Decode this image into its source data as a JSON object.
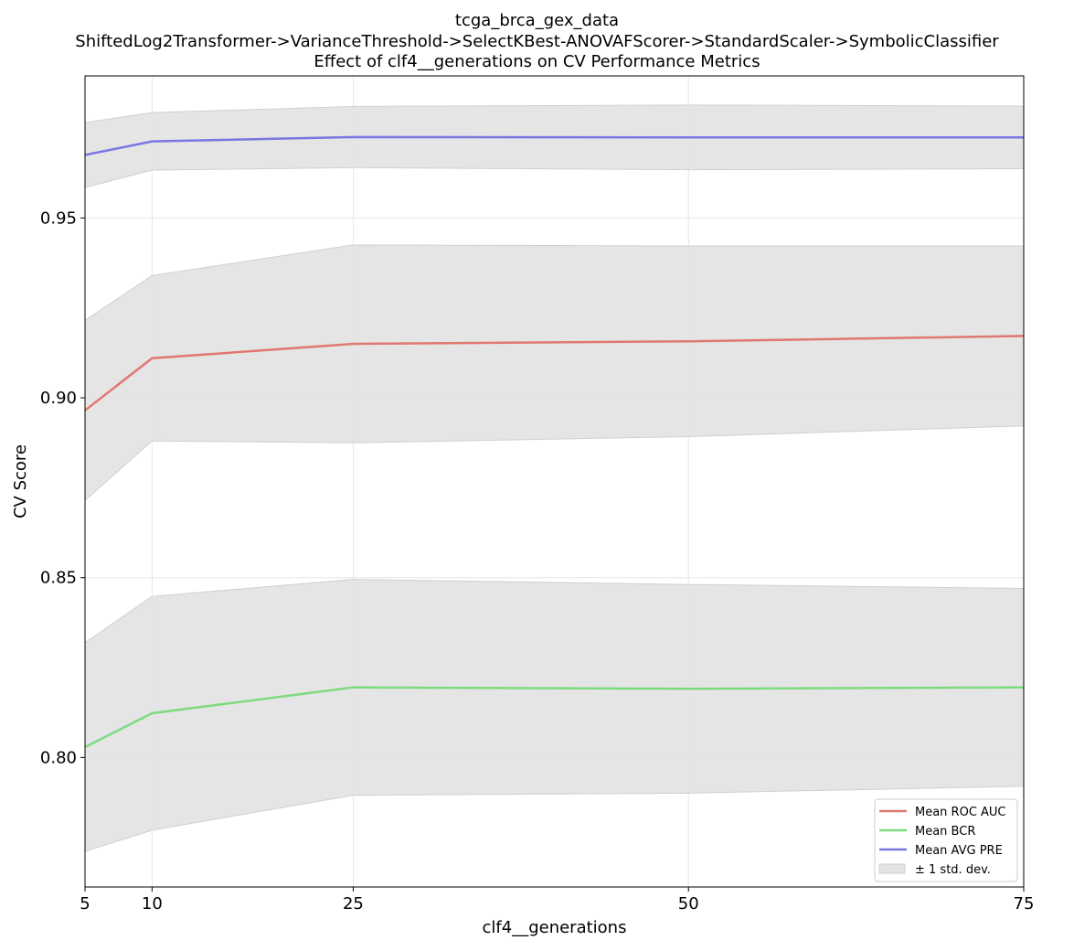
{
  "titles": {
    "line1": "tcga_brca_gex_data",
    "line2": "ShiftedLog2Transformer->VarianceThreshold->SelectKBest-ANOVAFScorer->StandardScaler->SymbolicClassifier",
    "line3": "Effect of clf4__generations on CV Performance Metrics"
  },
  "colors": {
    "roc_auc": "#e07870",
    "bcr": "#7ddb7d",
    "avg_pre": "#7b76e0",
    "band": "#e4e4e5",
    "band_edge": "#d0d0d0",
    "grid": "#e6e6e6"
  },
  "chart_data": {
    "type": "line",
    "xlabel": "clf4__generations",
    "ylabel": "CV Score",
    "x": [
      5,
      10,
      25,
      50,
      75
    ],
    "x_ticks": [
      "5",
      "10",
      "25",
      "50",
      "75"
    ],
    "xlim": [
      5,
      75
    ],
    "y_ticks": [
      "0.80",
      "0.85",
      "0.90",
      "0.95"
    ],
    "y_tick_values": [
      0.8,
      0.85,
      0.9,
      0.95
    ],
    "ylim": [
      0.764,
      0.9895
    ],
    "grid": true,
    "legend_position": "lower-right",
    "series": [
      {
        "name": "Mean ROC AUC",
        "key": "roc_auc",
        "values": [
          0.8965,
          0.911,
          0.915,
          0.9157,
          0.9172
        ],
        "std": [
          0.025,
          0.023,
          0.0275,
          0.0265,
          0.025
        ]
      },
      {
        "name": "Mean BCR",
        "key": "bcr",
        "values": [
          0.8029,
          0.8123,
          0.8195,
          0.8191,
          0.8195
        ],
        "std": [
          0.029,
          0.0325,
          0.03,
          0.029,
          0.0275
        ]
      },
      {
        "name": "Mean AVG PRE",
        "key": "avg_pre",
        "values": [
          0.9675,
          0.9713,
          0.9725,
          0.9724,
          0.9724
        ],
        "std": [
          0.009,
          0.008,
          0.0085,
          0.009,
          0.0087
        ]
      }
    ],
    "band_label": "± 1 std. dev."
  }
}
